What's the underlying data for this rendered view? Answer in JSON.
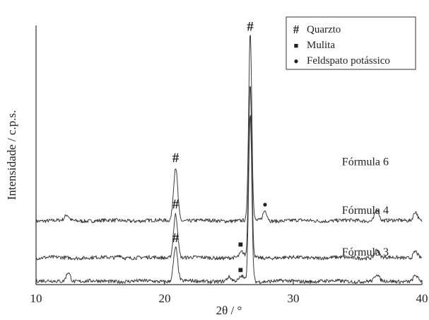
{
  "chart_data": {
    "type": "line",
    "title": "",
    "xlabel": "2θ / °",
    "ylabel": "Intensidade / c.p.s.",
    "xlim": [
      10,
      40
    ],
    "x_ticks": [
      "10",
      "20",
      "30",
      "40"
    ],
    "grid": false,
    "legend_position": "top-right",
    "legend": [
      {
        "symbol": "#",
        "label": "Quarzto"
      },
      {
        "symbol": "■",
        "label": "Mulita"
      },
      {
        "symbol": "●",
        "label": "Feldspato potássico"
      }
    ],
    "series": [
      {
        "name": "Fórmula 6",
        "baseline": 9,
        "peaks": [
          {
            "x": 12.4,
            "h": 0.8
          },
          {
            "x": 20.85,
            "h": 8.0
          },
          {
            "x": 26.65,
            "h": 28.0
          },
          {
            "x": 27.8,
            "h": 1.5
          },
          {
            "x": 36.5,
            "h": 1.8
          },
          {
            "x": 39.5,
            "h": 1.4
          }
        ]
      },
      {
        "name": "Fórmula 4",
        "baseline": 3.5,
        "peaks": [
          {
            "x": 16.5,
            "h": 0.4
          },
          {
            "x": 20.85,
            "h": 6.5
          },
          {
            "x": 26.0,
            "h": 0.8
          },
          {
            "x": 26.65,
            "h": 26.0
          },
          {
            "x": 36.5,
            "h": 1.2
          },
          {
            "x": 39.5,
            "h": 1.0
          }
        ]
      },
      {
        "name": "Fórmula 3",
        "baseline": 0,
        "peaks": [
          {
            "x": 12.5,
            "h": 1.4
          },
          {
            "x": 20.85,
            "h": 5.0
          },
          {
            "x": 25.0,
            "h": 0.6
          },
          {
            "x": 26.0,
            "h": 0.7
          },
          {
            "x": 26.65,
            "h": 25.0
          },
          {
            "x": 36.5,
            "h": 1.0
          },
          {
            "x": 39.5,
            "h": 0.9
          }
        ]
      }
    ],
    "annotations": [
      {
        "symbol": "#",
        "x": 26.65,
        "y": 37.2
      },
      {
        "symbol": "#",
        "x": 20.85,
        "y": 17.7
      },
      {
        "symbol": "●",
        "x": 27.8,
        "y": 11.0
      },
      {
        "symbol": "#",
        "x": 20.85,
        "y": 10.8
      },
      {
        "symbol": "■",
        "x": 25.9,
        "y": 5.1
      },
      {
        "symbol": "#",
        "x": 20.85,
        "y": 5.8
      },
      {
        "symbol": "■",
        "x": 25.9,
        "y": 1.3
      }
    ],
    "ylim": [
      -0.5,
      38
    ]
  }
}
